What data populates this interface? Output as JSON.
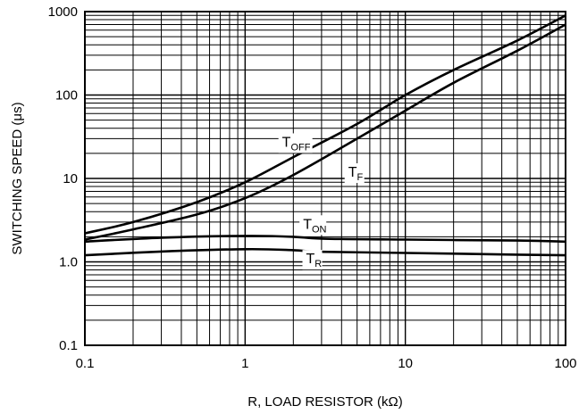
{
  "chart_data": {
    "type": "line",
    "title": "",
    "xlabel": "R, LOAD RESISTOR (kΩ)",
    "ylabel": "SWITCHING SPEED (μs)",
    "x_scale": "log",
    "y_scale": "log",
    "xlim": [
      0.1,
      100
    ],
    "ylim": [
      0.1,
      1000
    ],
    "x_ticks": [
      {
        "value": 0.1,
        "label": "0.1"
      },
      {
        "value": 1,
        "label": "1"
      },
      {
        "value": 10,
        "label": "10"
      },
      {
        "value": 100,
        "label": "100"
      }
    ],
    "y_ticks": [
      {
        "value": 0.1,
        "label": "0.1"
      },
      {
        "value": 1,
        "label": "1.0"
      },
      {
        "value": 10,
        "label": "10"
      },
      {
        "value": 100,
        "label": "100"
      },
      {
        "value": 1000,
        "label": "1000"
      }
    ],
    "grid": true,
    "series": [
      {
        "name": "TOFF",
        "label_main": "T",
        "label_sub": "OFF",
        "label_at": {
          "x": 1.7,
          "y": 24
        },
        "points": [
          [
            0.1,
            2.2
          ],
          [
            0.2,
            3.0
          ],
          [
            0.5,
            5.2
          ],
          [
            1,
            9.0
          ],
          [
            2,
            18
          ],
          [
            5,
            45
          ],
          [
            10,
            100
          ],
          [
            20,
            200
          ],
          [
            50,
            450
          ],
          [
            100,
            900
          ]
        ]
      },
      {
        "name": "TF",
        "label_main": "T",
        "label_sub": "F",
        "label_at": {
          "x": 4.4,
          "y": 10.5
        },
        "points": [
          [
            0.1,
            1.85
          ],
          [
            0.2,
            2.45
          ],
          [
            0.5,
            3.7
          ],
          [
            1,
            5.8
          ],
          [
            2,
            11
          ],
          [
            5,
            30
          ],
          [
            10,
            65
          ],
          [
            20,
            140
          ],
          [
            50,
            340
          ],
          [
            100,
            700
          ]
        ]
      },
      {
        "name": "TON",
        "label_main": "T",
        "label_sub": "ON",
        "label_at": {
          "x": 2.3,
          "y": 2.5
        },
        "points": [
          [
            0.1,
            1.75
          ],
          [
            0.3,
            1.95
          ],
          [
            1,
            2.05
          ],
          [
            2,
            2.0
          ],
          [
            3,
            1.9
          ],
          [
            10,
            1.85
          ],
          [
            50,
            1.8
          ],
          [
            100,
            1.75
          ]
        ]
      },
      {
        "name": "TR",
        "label_main": "T",
        "label_sub": "R",
        "label_at": {
          "x": 2.4,
          "y": 0.96
        },
        "points": [
          [
            0.1,
            1.2
          ],
          [
            0.3,
            1.33
          ],
          [
            1,
            1.42
          ],
          [
            2,
            1.38
          ],
          [
            3,
            1.32
          ],
          [
            10,
            1.28
          ],
          [
            50,
            1.22
          ],
          [
            100,
            1.2
          ]
        ]
      }
    ]
  }
}
